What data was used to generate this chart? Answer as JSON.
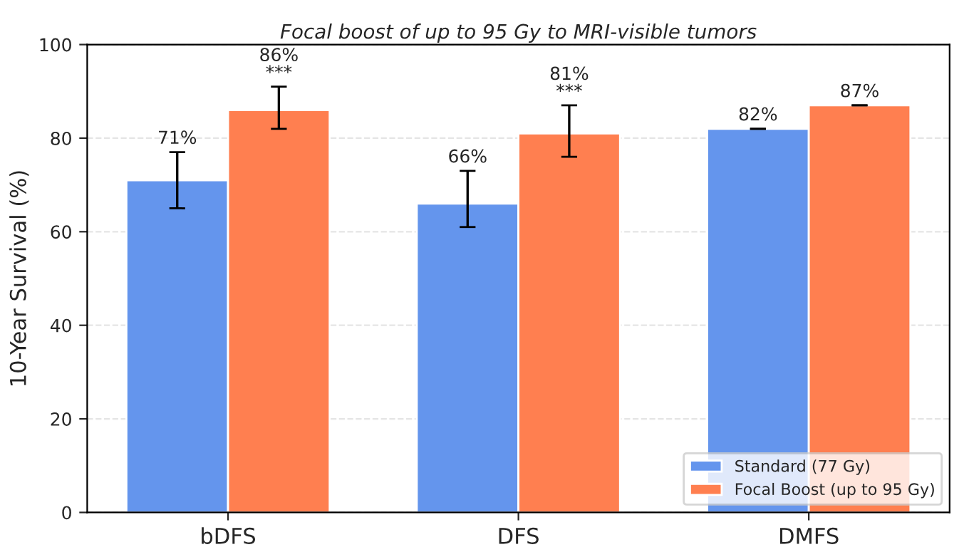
{
  "chart_data": {
    "type": "bar",
    "title": "Focal boost of up to 95 Gy to MRI-visible tumors",
    "ylabel": "10-Year Survival (%)",
    "categories": [
      "bDFS",
      "DFS",
      "DMFS"
    ],
    "series": [
      {
        "name": "Standard (77 Gy)",
        "color": "#6495ed",
        "values": [
          71,
          66,
          82
        ],
        "errors": [
          [
            65,
            77
          ],
          [
            61,
            73
          ],
          0
        ],
        "value_labels": [
          "71%",
          "66%",
          "82%"
        ]
      },
      {
        "name": "Focal Boost (up to 95 Gy)",
        "color": "#ff7f50",
        "values": [
          86,
          81,
          87
        ],
        "errors": [
          [
            82,
            91
          ],
          [
            76,
            87
          ],
          0
        ],
        "value_labels": [
          "86%\n***",
          "81%\n***",
          "87%"
        ]
      }
    ],
    "ylim": [
      0,
      100
    ],
    "yticks": [
      0,
      20,
      40,
      60,
      80,
      100
    ],
    "grid": "y",
    "legend": "bottom right"
  }
}
